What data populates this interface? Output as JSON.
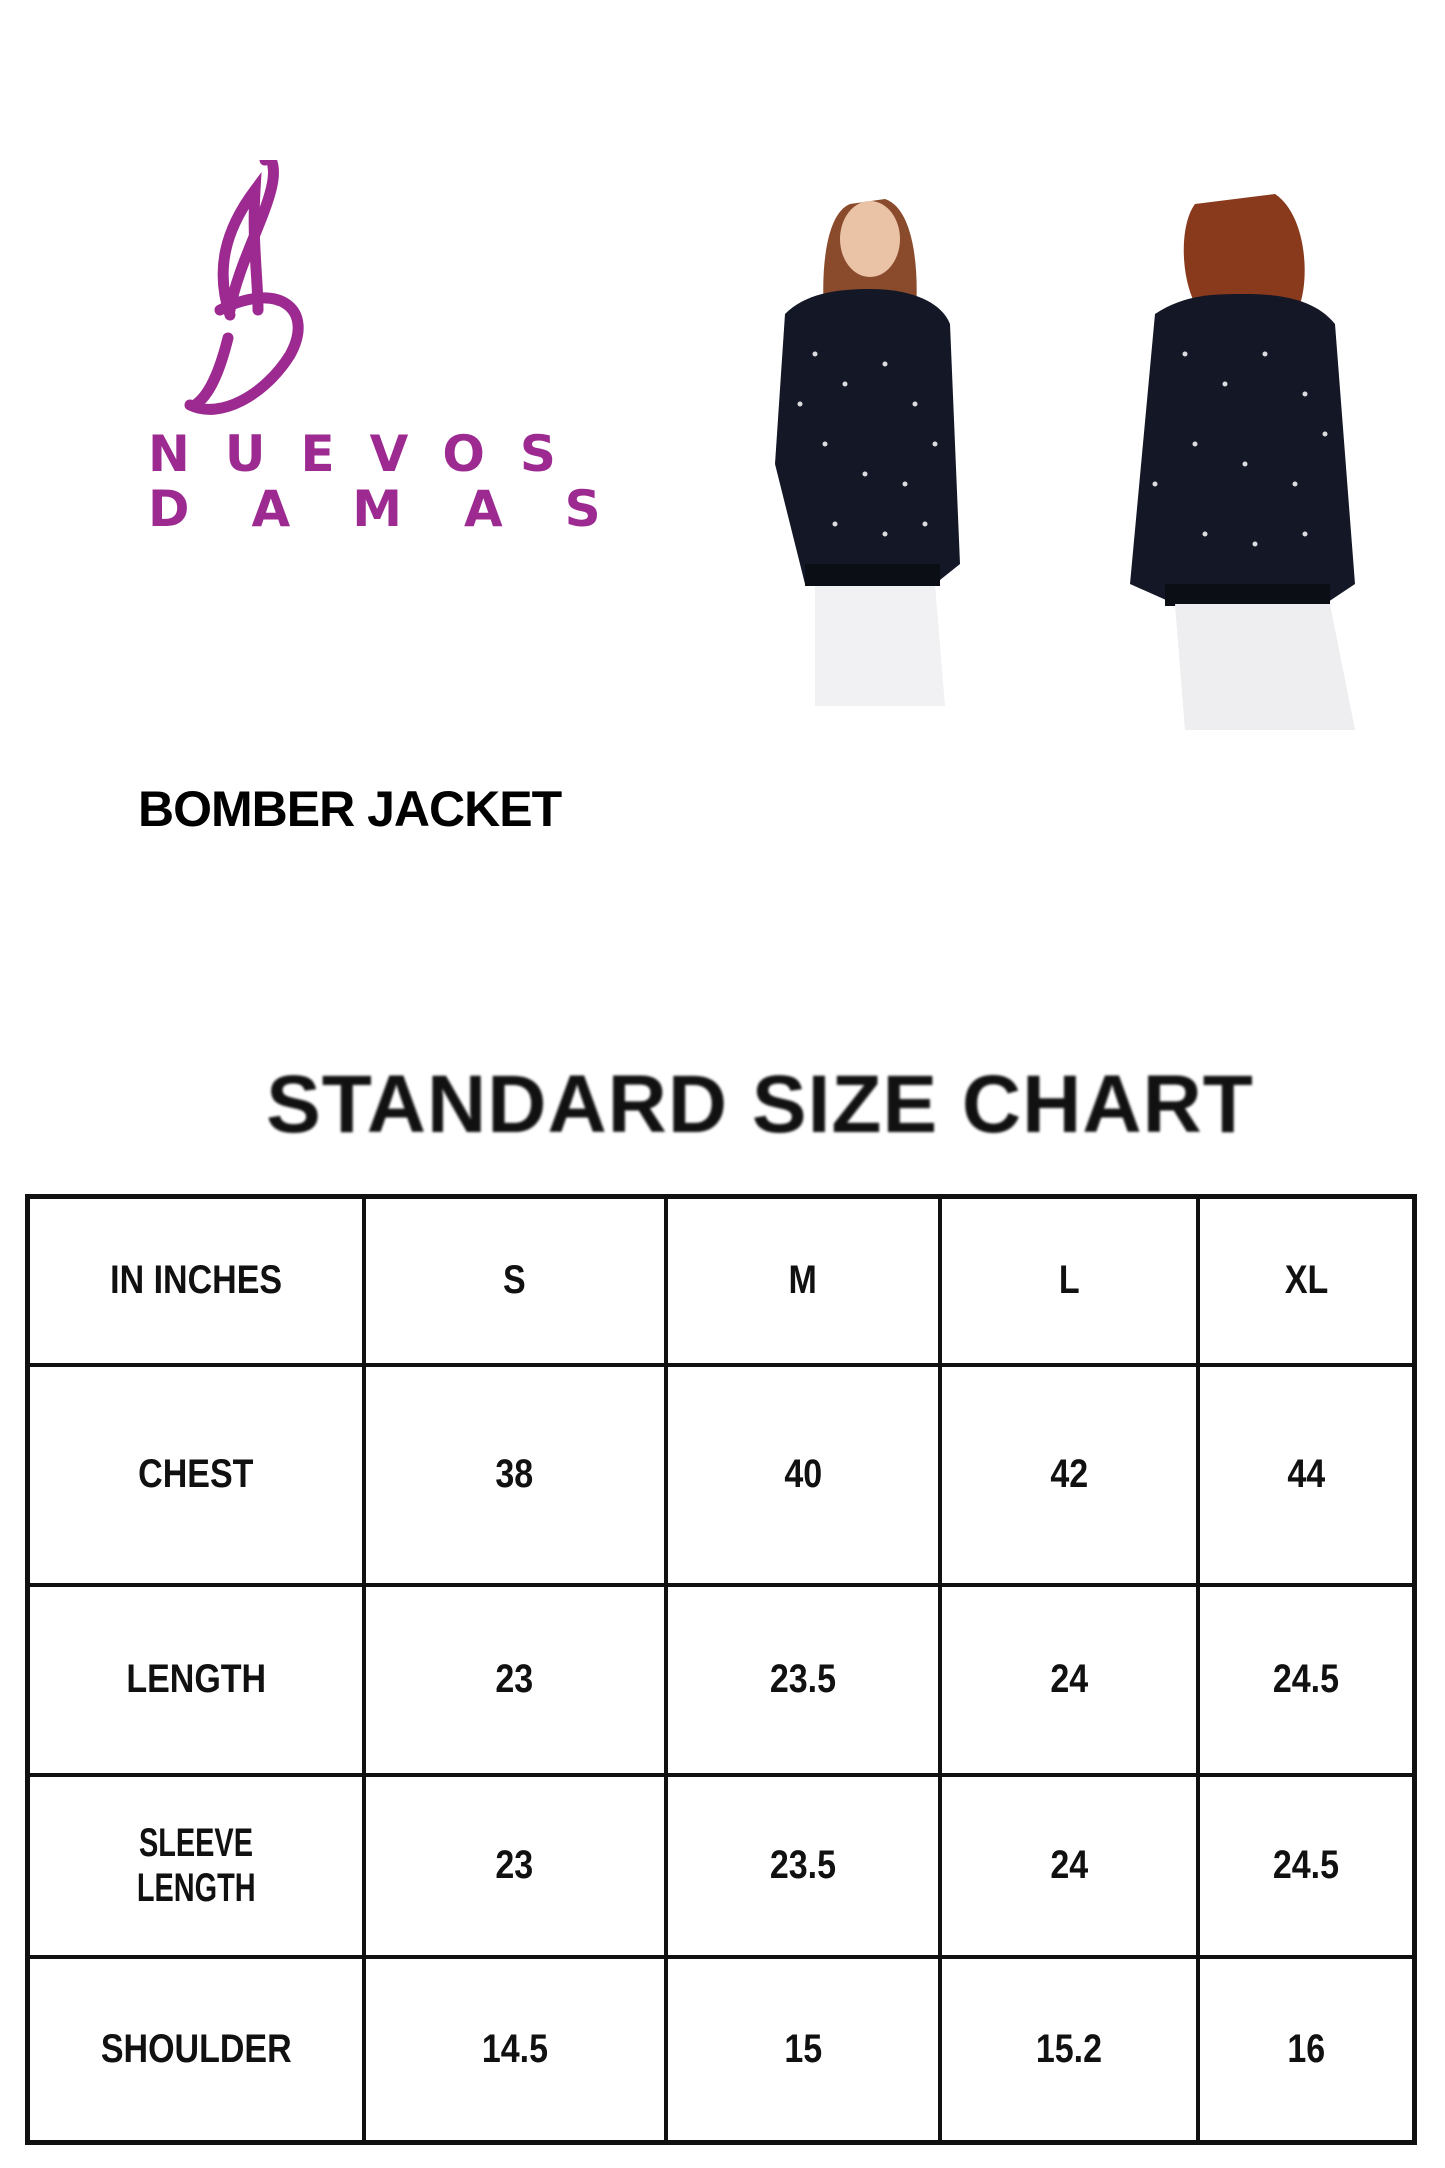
{
  "brand": {
    "logo_text_line1": "NUEVOS",
    "logo_text_line2": "DAMAS",
    "color": "#9c2a90"
  },
  "product": {
    "title": "BOMBER JACKET"
  },
  "photos": [
    {
      "view": "front",
      "alt": "model wearing bomber jacket front view"
    },
    {
      "view": "back",
      "alt": "model wearing bomber jacket back view"
    }
  ],
  "size_chart": {
    "title": "STANDARD SIZE CHART",
    "header": [
      "IN INCHES",
      "S",
      "M",
      "L",
      "XL"
    ],
    "rows": [
      {
        "label": "CHEST",
        "values": [
          "38",
          "40",
          "42",
          "44"
        ]
      },
      {
        "label": "LENGTH",
        "values": [
          "23",
          "23.5",
          "24",
          "24.5"
        ]
      },
      {
        "label_line1": "SLEEVE",
        "label_line2": "LENGTH",
        "values": [
          "23",
          "23.5",
          "24",
          "24.5"
        ]
      },
      {
        "label": "SHOULDER",
        "values": [
          "14.5",
          "15",
          "15.2",
          "16"
        ]
      }
    ]
  }
}
